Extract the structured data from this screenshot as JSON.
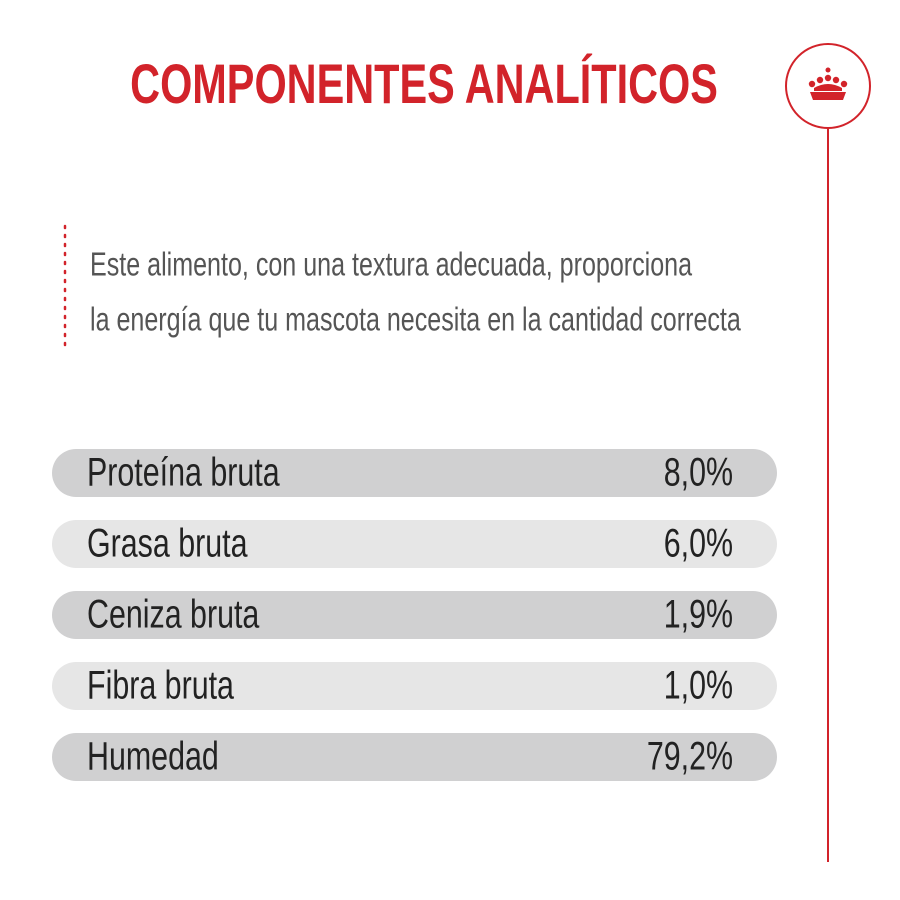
{
  "header": {
    "title": "COMPONENTES ANALÍTICOS"
  },
  "description": {
    "lines": [
      "Este alimento, con una textura adecuada, proporciona",
      "la energía que tu mascota necesita en la cantidad correcta"
    ]
  },
  "table": {
    "rows": [
      [
        "Proteína bruta",
        "8,0%"
      ],
      [
        "Grasa bruta",
        "6,0%"
      ],
      [
        "Ceniza bruta",
        "1,9%"
      ],
      [
        "Fibra bruta",
        "1,0%"
      ],
      [
        "Humedad",
        "79,2%"
      ]
    ]
  }
}
